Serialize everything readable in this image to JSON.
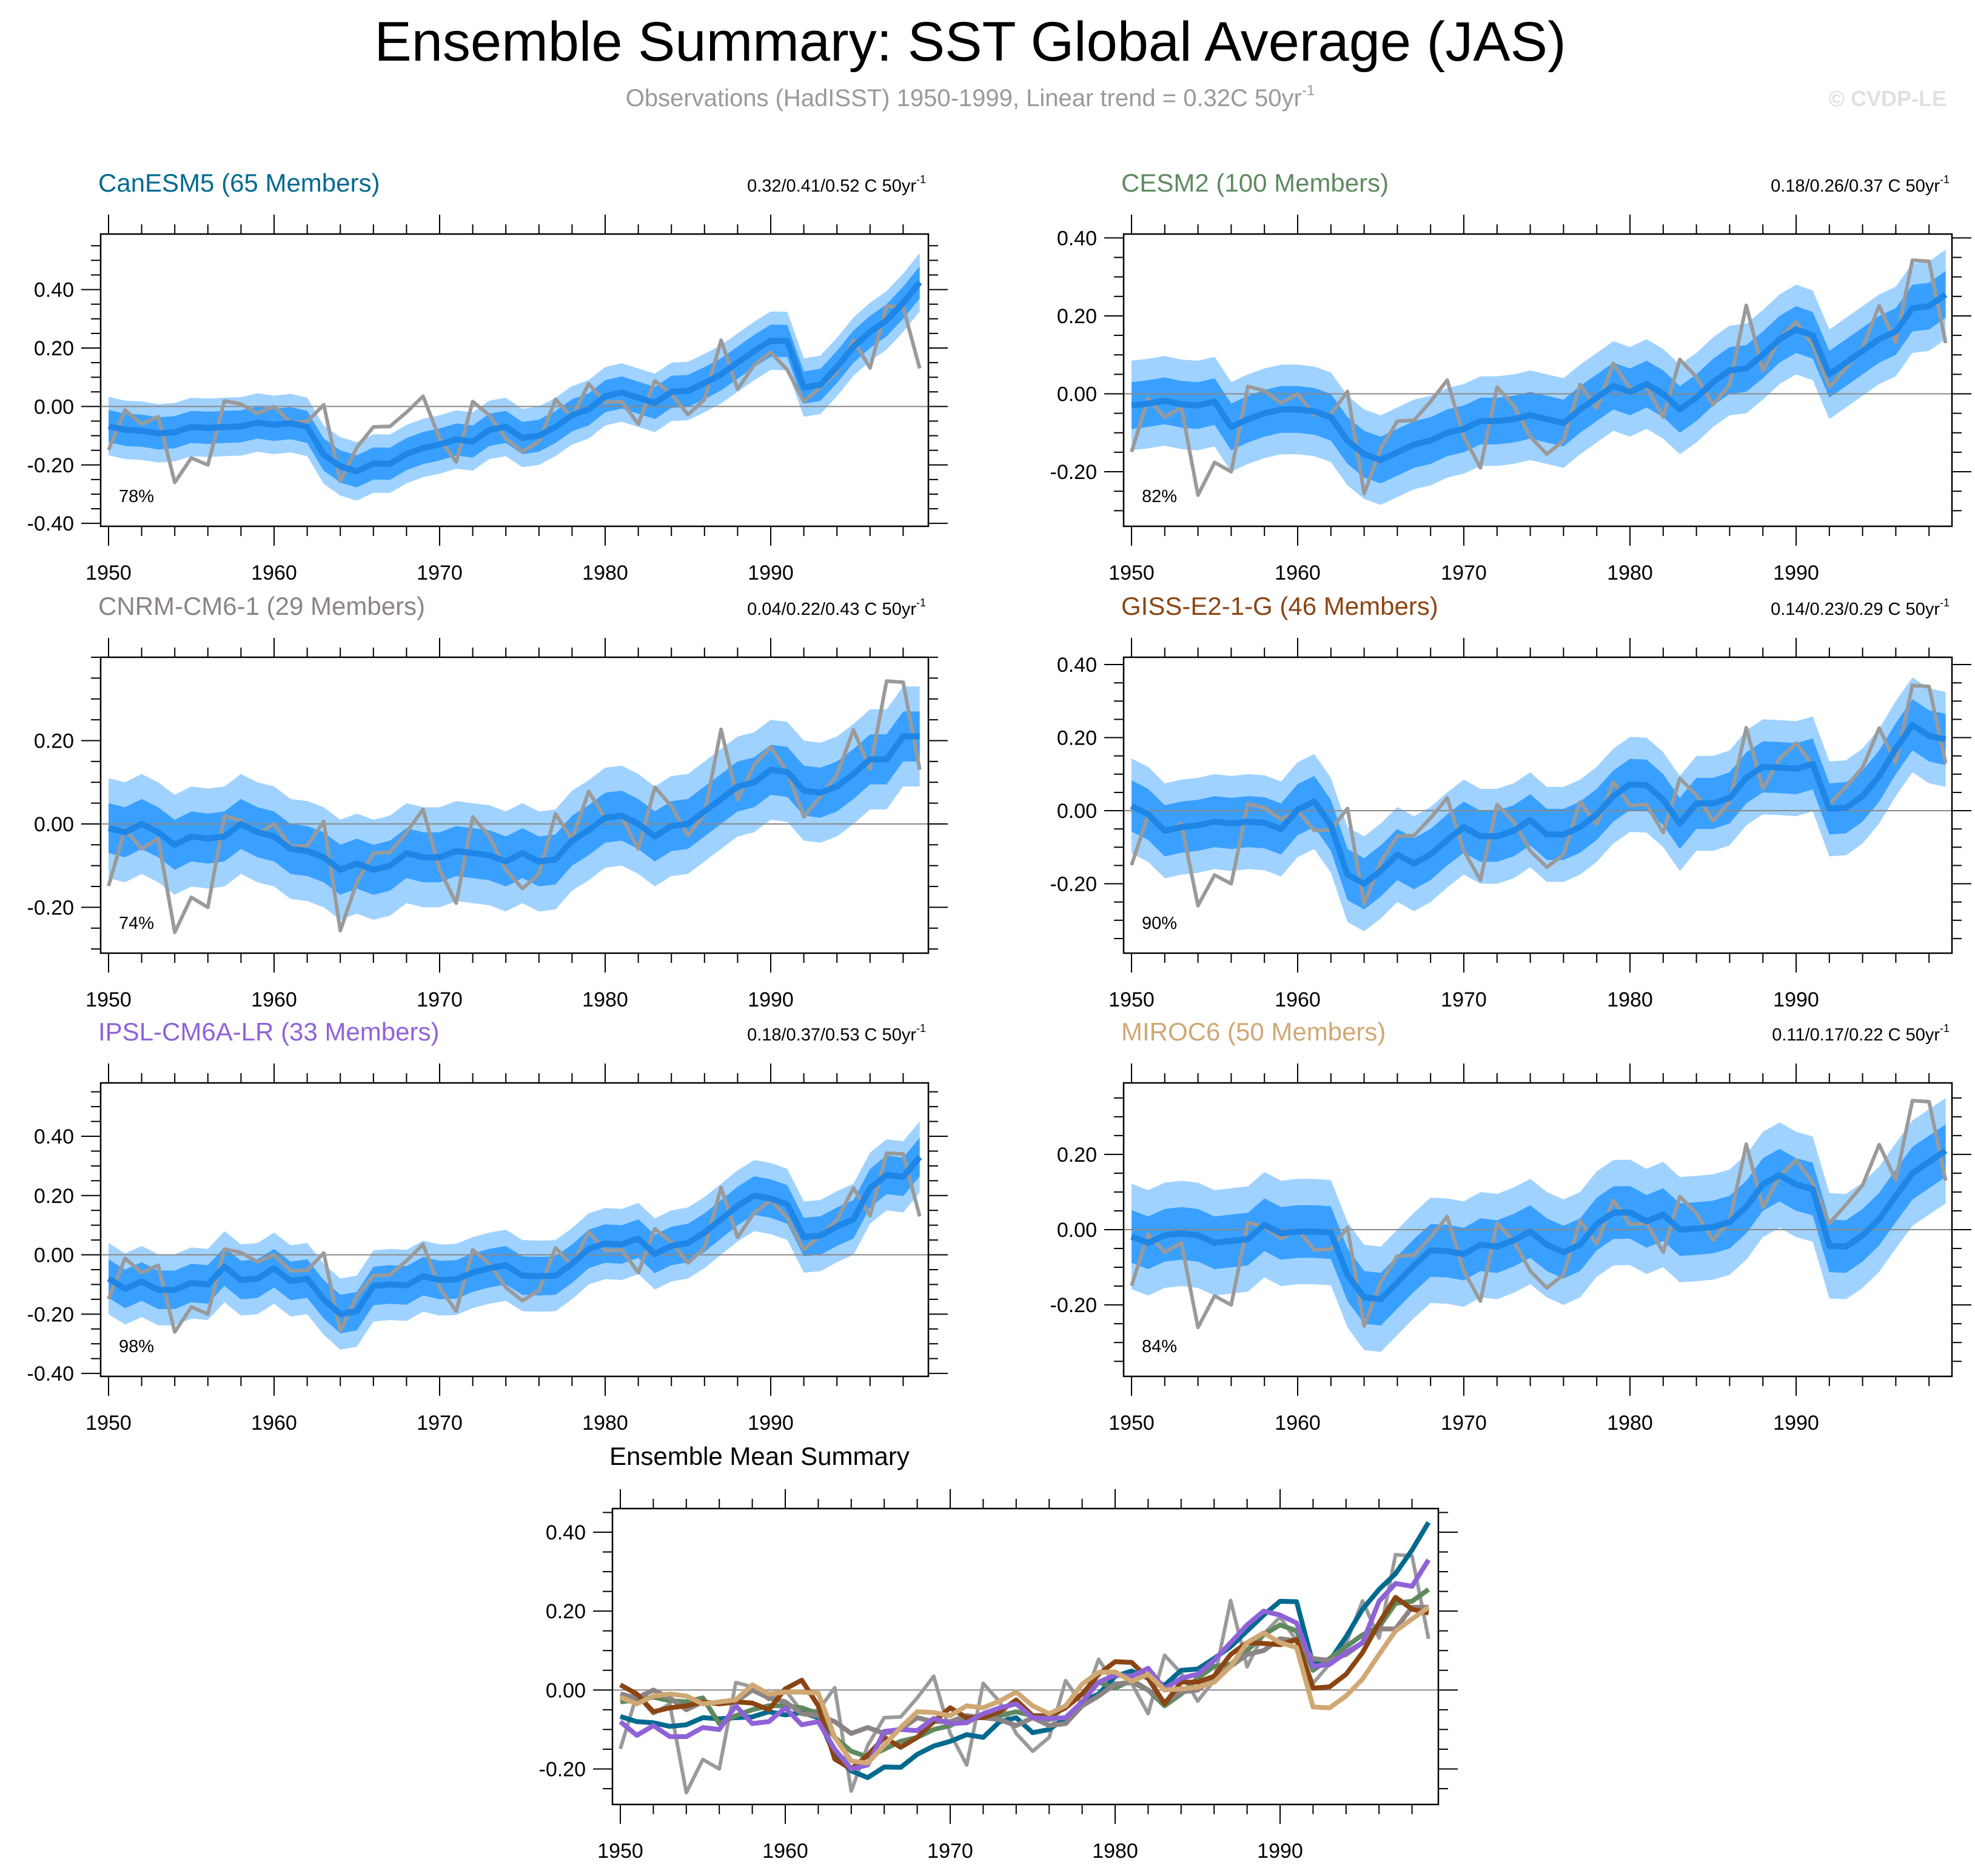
{
  "title": "Ensemble Summary: SST Global Average (JAS)",
  "subtitle": "Observations (HadISST) 1950-1999, Linear trend = 0.32C 50yr",
  "subtitle_sup": "-1",
  "copyright": "© CVDP-LE",
  "colors": {
    "band_light": "#a0d2ff",
    "band_dark": "#3aa0ff",
    "ensemble_mean": "#1e86e6",
    "observations": "#9a9a9a",
    "zero_line": "#888888"
  },
  "observations": {
    "name": "HadISST",
    "values": [
      -0.149,
      -0.012,
      -0.06,
      -0.035,
      -0.26,
      -0.176,
      -0.2,
      0.019,
      0.008,
      -0.024,
      0.0,
      -0.054,
      -0.052,
      0.006,
      -0.256,
      -0.14,
      -0.07,
      -0.068,
      -0.02,
      0.035,
      -0.11,
      -0.19,
      0.017,
      -0.03,
      -0.11,
      -0.155,
      -0.12,
      0.024,
      -0.037,
      0.078,
      0.014,
      0.017,
      -0.06,
      0.088,
      0.043,
      -0.028,
      0.024,
      0.227,
      0.059,
      0.142,
      0.185,
      0.125,
      0.017,
      0.066,
      0.118,
      0.226,
      0.132,
      0.343,
      0.34,
      0.13
    ]
  },
  "chart_data": [
    {
      "type": "area",
      "title": "CanESM5 (65 Members)",
      "color": "#006a8e",
      "trend": "0.32/0.41/0.52 C 50yr",
      "trend_sup": "-1",
      "percent": "78%",
      "x_start": 1950,
      "x_end": 1999,
      "x_tick_labels": [
        "1950",
        "1960",
        "1970",
        "1980",
        "1990"
      ],
      "ylim": [
        -0.41,
        0.59
      ],
      "y_ticks": [
        -0.4,
        -0.2,
        0,
        0.2,
        0.4
      ],
      "y_tick_labels": [
        "-0.40",
        "-0.20",
        "0.00",
        "0.20",
        "0.40"
      ],
      "spread_dark": 0.055,
      "spread_light": 0.1,
      "ensemble_mean": [
        -0.067,
        -0.08,
        -0.083,
        -0.092,
        -0.088,
        -0.07,
        -0.073,
        -0.07,
        -0.068,
        -0.055,
        -0.063,
        -0.057,
        -0.07,
        -0.165,
        -0.205,
        -0.222,
        -0.195,
        -0.196,
        -0.163,
        -0.142,
        -0.13,
        -0.113,
        -0.12,
        -0.08,
        -0.07,
        -0.108,
        -0.1,
        -0.07,
        -0.03,
        -0.01,
        0.035,
        0.048,
        0.03,
        0.012,
        0.05,
        0.053,
        0.08,
        0.11,
        0.15,
        0.19,
        0.225,
        0.224,
        0.065,
        0.074,
        0.135,
        0.205,
        0.255,
        0.295,
        0.355,
        0.425
      ]
    },
    {
      "type": "area",
      "title": "CESM2 (100 Members)",
      "color": "#5f8a5f",
      "trend": "0.18/0.26/0.37 C 50yr",
      "trend_sup": "-1",
      "percent": "82%",
      "x_start": 1950,
      "x_end": 1999,
      "x_tick_labels": [
        "1950",
        "1960",
        "1970",
        "1980",
        "1990"
      ],
      "ylim": [
        -0.34,
        0.41
      ],
      "y_ticks": [
        -0.2,
        0,
        0.2,
        0.4
      ],
      "y_tick_labels": [
        "-0.20",
        "0.00",
        "0.20",
        "0.40"
      ],
      "spread_dark": 0.06,
      "spread_light": 0.115,
      "ensemble_mean": [
        -0.03,
        -0.025,
        -0.018,
        -0.027,
        -0.03,
        -0.02,
        -0.085,
        -0.065,
        -0.05,
        -0.04,
        -0.04,
        -0.045,
        -0.06,
        -0.12,
        -0.155,
        -0.17,
        -0.15,
        -0.13,
        -0.12,
        -0.1,
        -0.09,
        -0.07,
        -0.07,
        -0.065,
        -0.055,
        -0.065,
        -0.075,
        -0.04,
        -0.01,
        0.02,
        0.005,
        0.025,
        0.0,
        -0.04,
        -0.01,
        0.03,
        0.06,
        0.065,
        0.1,
        0.14,
        0.165,
        0.15,
        0.05,
        0.08,
        0.11,
        0.14,
        0.16,
        0.22,
        0.225,
        0.255
      ]
    },
    {
      "type": "area",
      "title": "CNRM-CM6-1 (29 Members)",
      "color": "#8c8484",
      "trend": "0.04/0.22/0.43 C 50yr",
      "trend_sup": "-1",
      "percent": "74%",
      "x_start": 1950,
      "x_end": 1999,
      "x_tick_labels": [
        "1950",
        "1960",
        "1970",
        "1980",
        "1990"
      ],
      "ylim": [
        -0.31,
        0.4
      ],
      "y_ticks": [
        -0.2,
        0,
        0.2
      ],
      "y_tick_labels": [
        "-0.20",
        "0.00",
        "0.20"
      ],
      "spread_dark": 0.06,
      "spread_light": 0.12,
      "ensemble_mean": [
        -0.01,
        -0.02,
        0.0,
        -0.02,
        -0.05,
        -0.03,
        -0.035,
        -0.03,
        0.0,
        -0.02,
        -0.03,
        -0.06,
        -0.065,
        -0.08,
        -0.11,
        -0.095,
        -0.11,
        -0.1,
        -0.07,
        -0.08,
        -0.08,
        -0.065,
        -0.07,
        -0.075,
        -0.09,
        -0.07,
        -0.09,
        -0.085,
        -0.04,
        -0.015,
        0.015,
        0.02,
        0.0,
        -0.03,
        -0.005,
        0.0,
        0.03,
        0.06,
        0.09,
        0.1,
        0.13,
        0.125,
        0.08,
        0.075,
        0.09,
        0.12,
        0.155,
        0.155,
        0.21,
        0.21
      ]
    },
    {
      "type": "area",
      "title": "GISS-E2-1-G (46 Members)",
      "color": "#8b4513",
      "trend": "0.14/0.23/0.29 C 50yr",
      "trend_sup": "-1",
      "percent": "90%",
      "x_start": 1950,
      "x_end": 1999,
      "x_tick_labels": [
        "1950",
        "1960",
        "1970",
        "1980",
        "1990"
      ],
      "ylim": [
        -0.39,
        0.42
      ],
      "y_ticks": [
        -0.2,
        0,
        0.2,
        0.4
      ],
      "y_tick_labels": [
        "-0.20",
        "0.00",
        "0.20",
        "0.40"
      ],
      "spread_dark": 0.07,
      "spread_light": 0.13,
      "ensemble_mean": [
        0.013,
        -0.01,
        -0.055,
        -0.045,
        -0.04,
        -0.03,
        -0.035,
        -0.03,
        -0.033,
        -0.05,
        0.003,
        0.025,
        -0.04,
        -0.175,
        -0.2,
        -0.165,
        -0.12,
        -0.145,
        -0.12,
        -0.08,
        -0.045,
        -0.07,
        -0.07,
        -0.055,
        -0.025,
        -0.065,
        -0.065,
        -0.045,
        -0.01,
        0.04,
        0.072,
        0.07,
        0.03,
        -0.035,
        0.02,
        0.02,
        0.035,
        0.09,
        0.12,
        0.118,
        0.115,
        0.128,
        0.005,
        0.008,
        0.04,
        0.095,
        0.17,
        0.235,
        0.205,
        0.195
      ]
    },
    {
      "type": "area",
      "title": "IPSL-CM6A-LR (33 Members)",
      "color": "#8f62d8",
      "trend": "0.18/0.37/0.53 C 50yr",
      "trend_sup": "-1",
      "percent": "98%",
      "x_start": 1950,
      "x_end": 1999,
      "x_tick_labels": [
        "1950",
        "1960",
        "1970",
        "1980",
        "1990"
      ],
      "ylim": [
        -0.41,
        0.58
      ],
      "y_ticks": [
        -0.4,
        -0.2,
        0,
        0.2,
        0.4
      ],
      "y_tick_labels": [
        "-0.40",
        "-0.20",
        "0.00",
        "0.20",
        "0.40"
      ],
      "spread_dark": 0.065,
      "spread_light": 0.12,
      "ensemble_mean": [
        -0.08,
        -0.115,
        -0.09,
        -0.118,
        -0.118,
        -0.095,
        -0.1,
        -0.04,
        -0.085,
        -0.08,
        -0.045,
        -0.088,
        -0.08,
        -0.15,
        -0.2,
        -0.19,
        -0.105,
        -0.1,
        -0.103,
        -0.072,
        -0.085,
        -0.083,
        -0.06,
        -0.045,
        -0.035,
        -0.07,
        -0.072,
        -0.07,
        -0.03,
        0.02,
        0.038,
        0.035,
        0.055,
        0.003,
        0.03,
        0.04,
        0.075,
        0.12,
        0.165,
        0.2,
        0.19,
        0.17,
        0.06,
        0.065,
        0.095,
        0.12,
        0.225,
        0.27,
        0.263,
        0.33
      ]
    },
    {
      "type": "area",
      "title": "MIROC6 (50 Members)",
      "color": "#d0a874",
      "trend": "0.11/0.17/0.22 C 50yr",
      "trend_sup": "-1",
      "percent": "84%",
      "x_start": 1950,
      "x_end": 1999,
      "x_tick_labels": [
        "1950",
        "1960",
        "1970",
        "1980",
        "1990"
      ],
      "ylim": [
        -0.39,
        0.39
      ],
      "y_ticks": [
        -0.2,
        0,
        0.2
      ],
      "y_tick_labels": [
        "-0.20",
        "0.00",
        "0.20"
      ],
      "spread_dark": 0.07,
      "spread_light": 0.14,
      "ensemble_mean": [
        -0.018,
        -0.035,
        -0.015,
        -0.01,
        -0.015,
        -0.035,
        -0.03,
        -0.025,
        0.013,
        -0.01,
        -0.005,
        -0.005,
        -0.008,
        -0.12,
        -0.18,
        -0.185,
        -0.14,
        -0.095,
        -0.055,
        -0.057,
        -0.065,
        -0.04,
        -0.045,
        -0.028,
        -0.005,
        -0.04,
        -0.06,
        -0.04,
        0.015,
        0.045,
        0.046,
        0.022,
        0.04,
        0.0,
        0.003,
        0.007,
        0.02,
        0.06,
        0.12,
        0.145,
        0.12,
        0.108,
        -0.043,
        -0.045,
        -0.015,
        0.028,
        0.09,
        0.15,
        0.18,
        0.21
      ]
    },
    {
      "type": "line",
      "title": "Ensemble Mean Summary",
      "x_start": 1950,
      "x_end": 1999,
      "x_tick_labels": [
        "1950",
        "1960",
        "1970",
        "1980",
        "1990"
      ],
      "ylim": [
        -0.29,
        0.46
      ],
      "y_ticks": [
        -0.2,
        0,
        0.2,
        0.4
      ],
      "y_tick_labels": [
        "-0.20",
        "0.00",
        "0.20",
        "0.40"
      ],
      "series_from_panels": [
        0,
        1,
        2,
        3,
        4,
        5
      ]
    }
  ]
}
